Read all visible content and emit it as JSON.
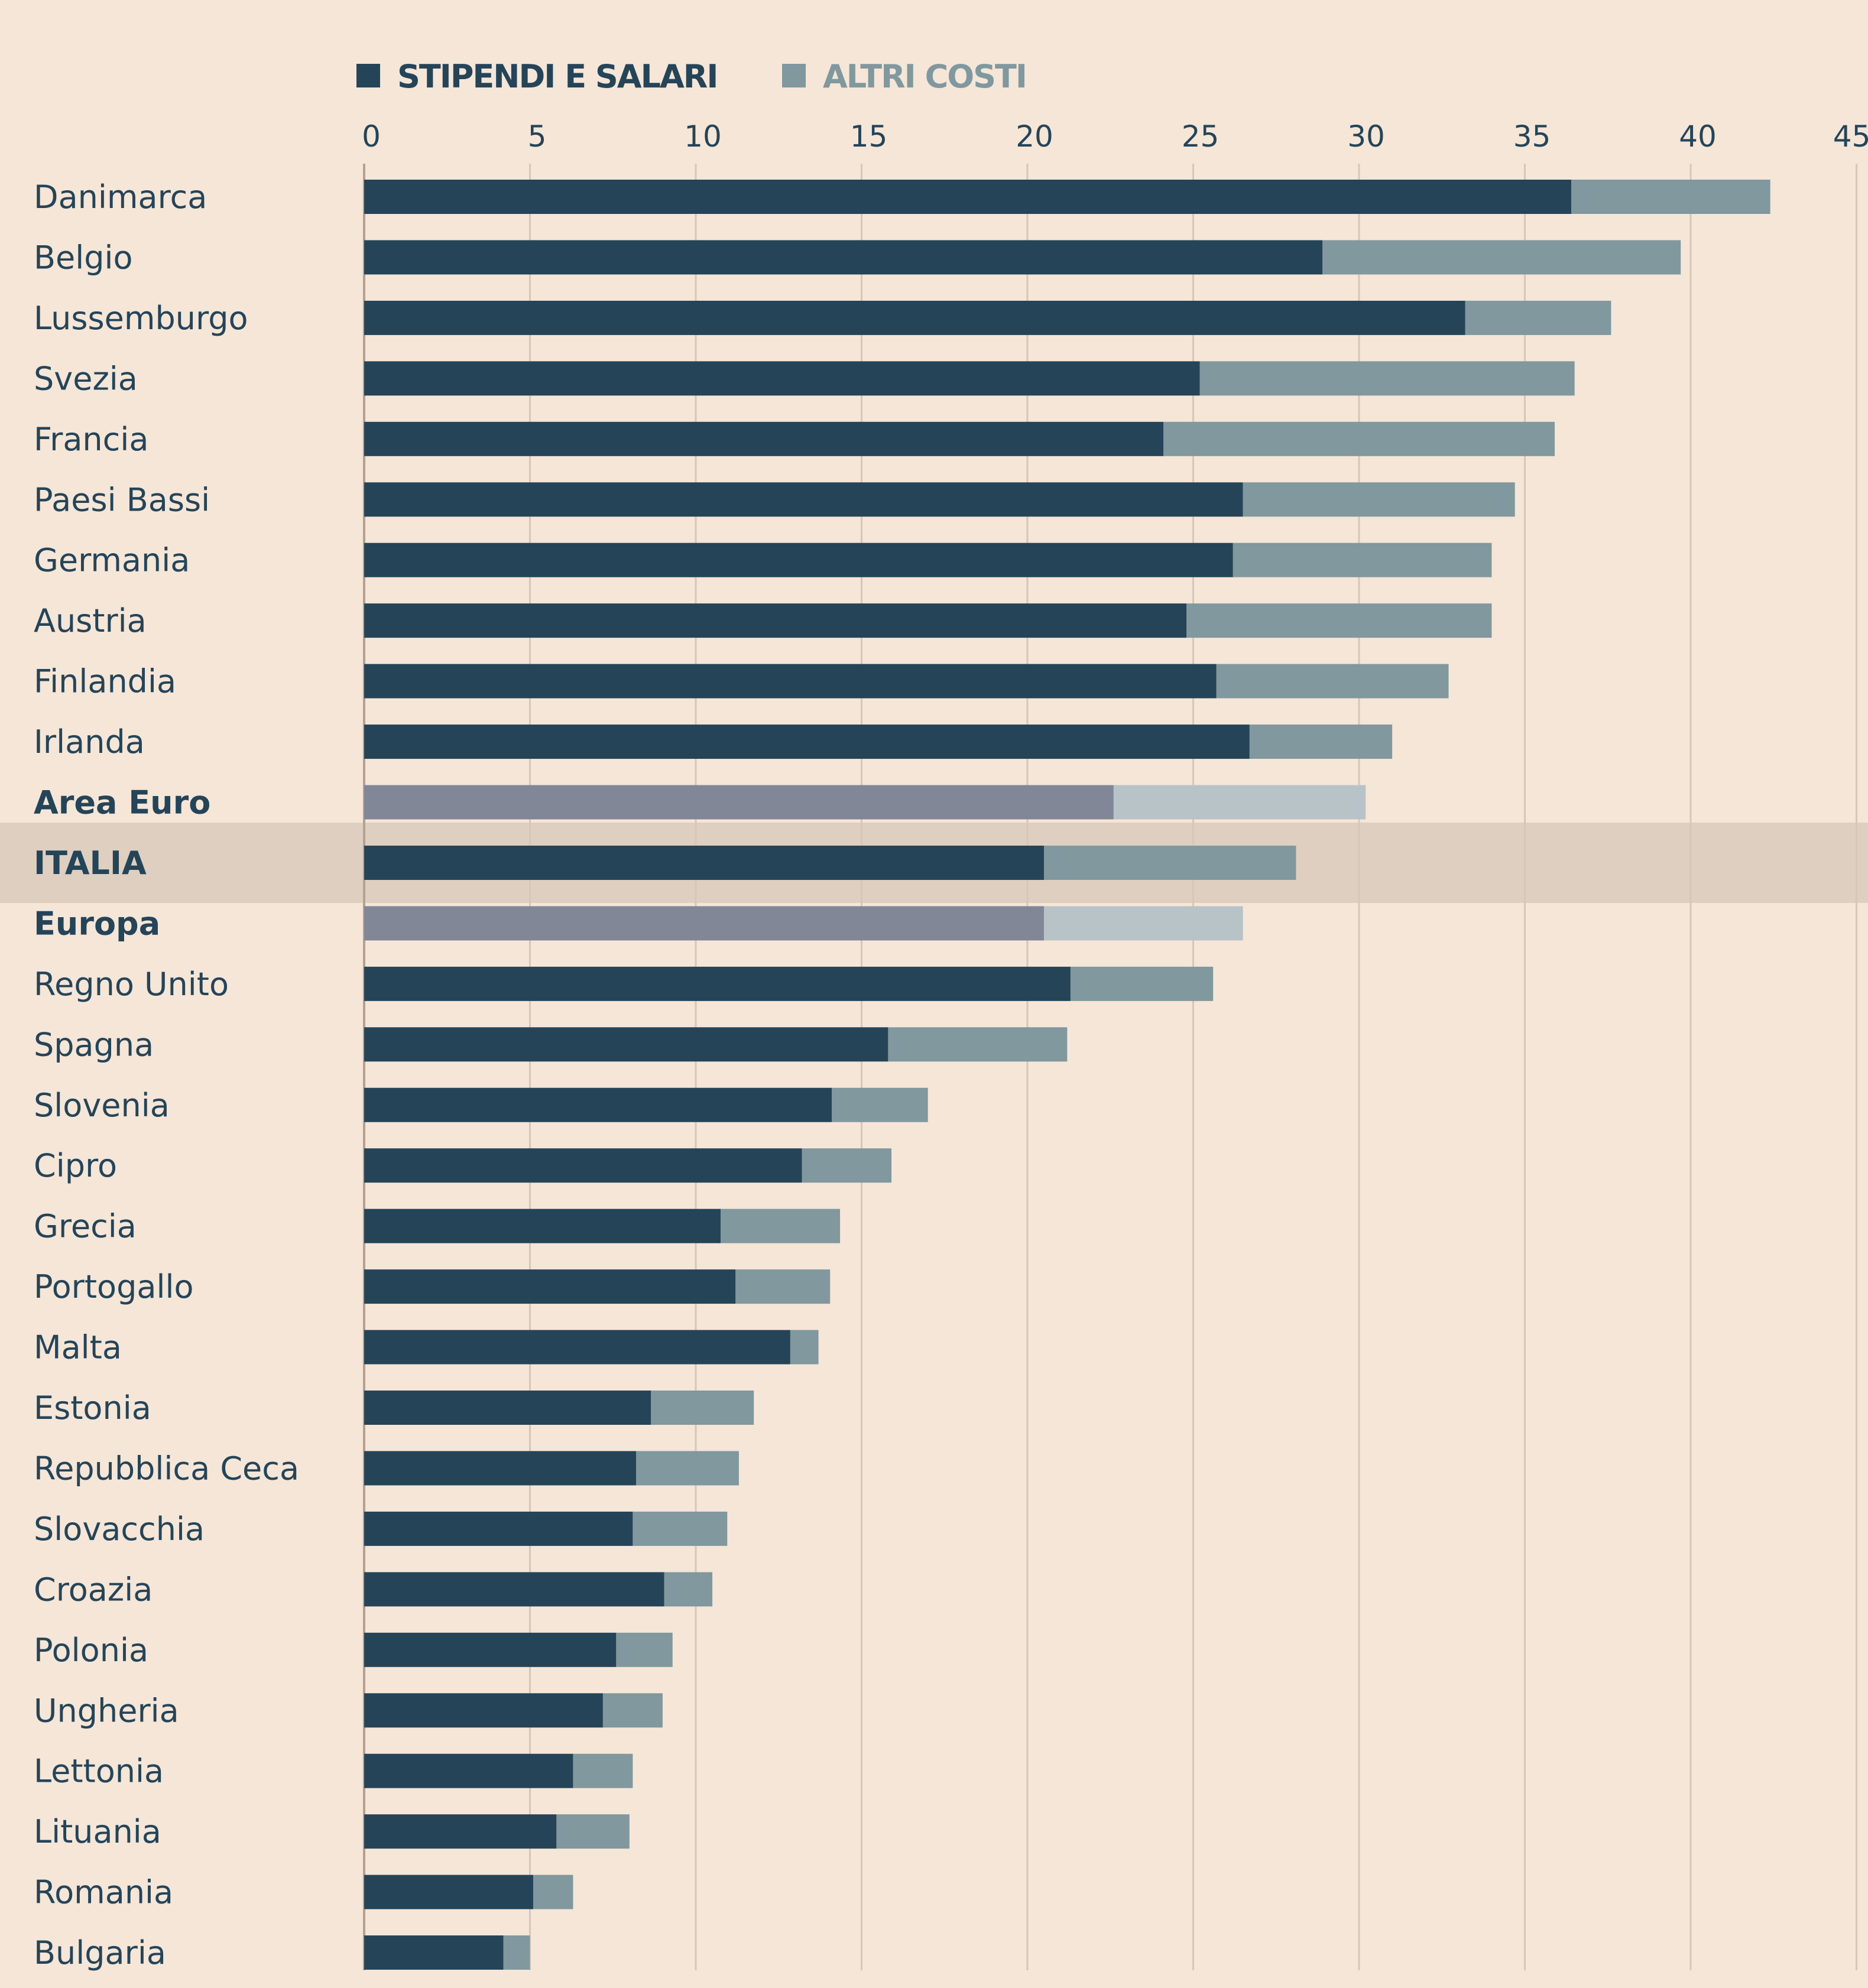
{
  "chart_data": {
    "type": "bar",
    "orientation": "horizontal",
    "stacked": true,
    "title": "",
    "xlabel": "",
    "ylabel": "",
    "xlim": [
      0,
      45
    ],
    "x_ticks": [
      0,
      5,
      10,
      15,
      20,
      25,
      30,
      35,
      40,
      45
    ],
    "grid": true,
    "legend_position": "top-left",
    "colors": {
      "background": "#F5E6D8",
      "highlight_band": "#DFCFC0",
      "stipendi": "#254458",
      "altri": "#80989E",
      "aggregate_stipendi": "#818797",
      "aggregate_altri": "#B8C3C8",
      "text": "#254458"
    },
    "legend": [
      {
        "name": "STIPENDI E SALARI",
        "color": "#254458"
      },
      {
        "name": "ALTRI COSTI",
        "color": "#80989E"
      }
    ],
    "categories": [
      "Danimarca",
      "Belgio",
      "Lussemburgo",
      "Svezia",
      "Francia",
      "Paesi Bassi",
      "Germania",
      "Austria",
      "Finlandia",
      "Irlanda",
      "Area Euro",
      "ITALIA",
      "Europa",
      "Regno Unito",
      "Spagna",
      "Slovenia",
      "Cipro",
      "Grecia",
      "Portogallo",
      "Malta",
      "Estonia",
      "Repubblica Ceca",
      "Slovacchia",
      "Croazia",
      "Polonia",
      "Ungheria",
      "Lettonia",
      "Lituania",
      "Romania",
      "Bulgaria"
    ],
    "bold_categories": [
      "Area Euro",
      "ITALIA",
      "Europa"
    ],
    "aggregate_categories": [
      "Area Euro",
      "Europa"
    ],
    "highlighted_category": "ITALIA",
    "series": [
      {
        "name": "STIPENDI E SALARI",
        "values": [
          36.4,
          28.9,
          33.2,
          25.2,
          24.1,
          26.5,
          26.2,
          24.8,
          25.7,
          26.7,
          22.6,
          20.5,
          20.5,
          21.3,
          15.8,
          14.1,
          13.2,
          10.75,
          11.2,
          12.85,
          8.65,
          8.2,
          8.1,
          9.05,
          7.6,
          7.2,
          6.3,
          5.8,
          5.1,
          4.2
        ]
      },
      {
        "name": "ALTRI COSTI",
        "values": [
          6.0,
          10.8,
          4.4,
          11.3,
          11.8,
          8.2,
          7.8,
          9.2,
          7.0,
          4.3,
          7.6,
          7.6,
          6.0,
          4.3,
          5.4,
          2.9,
          2.7,
          3.6,
          2.85,
          0.85,
          3.1,
          3.1,
          2.85,
          1.45,
          1.7,
          1.8,
          1.8,
          2.2,
          1.2,
          0.8
        ]
      }
    ],
    "totals": [
      42.4,
      39.7,
      37.6,
      36.5,
      35.9,
      34.7,
      34.0,
      34.0,
      32.7,
      31.0,
      30.2,
      28.1,
      26.5,
      25.6,
      21.2,
      17.0,
      15.9,
      14.35,
      14.05,
      13.7,
      11.75,
      11.3,
      10.95,
      10.5,
      9.3,
      9.0,
      8.1,
      8.0,
      6.3,
      5.0
    ]
  }
}
